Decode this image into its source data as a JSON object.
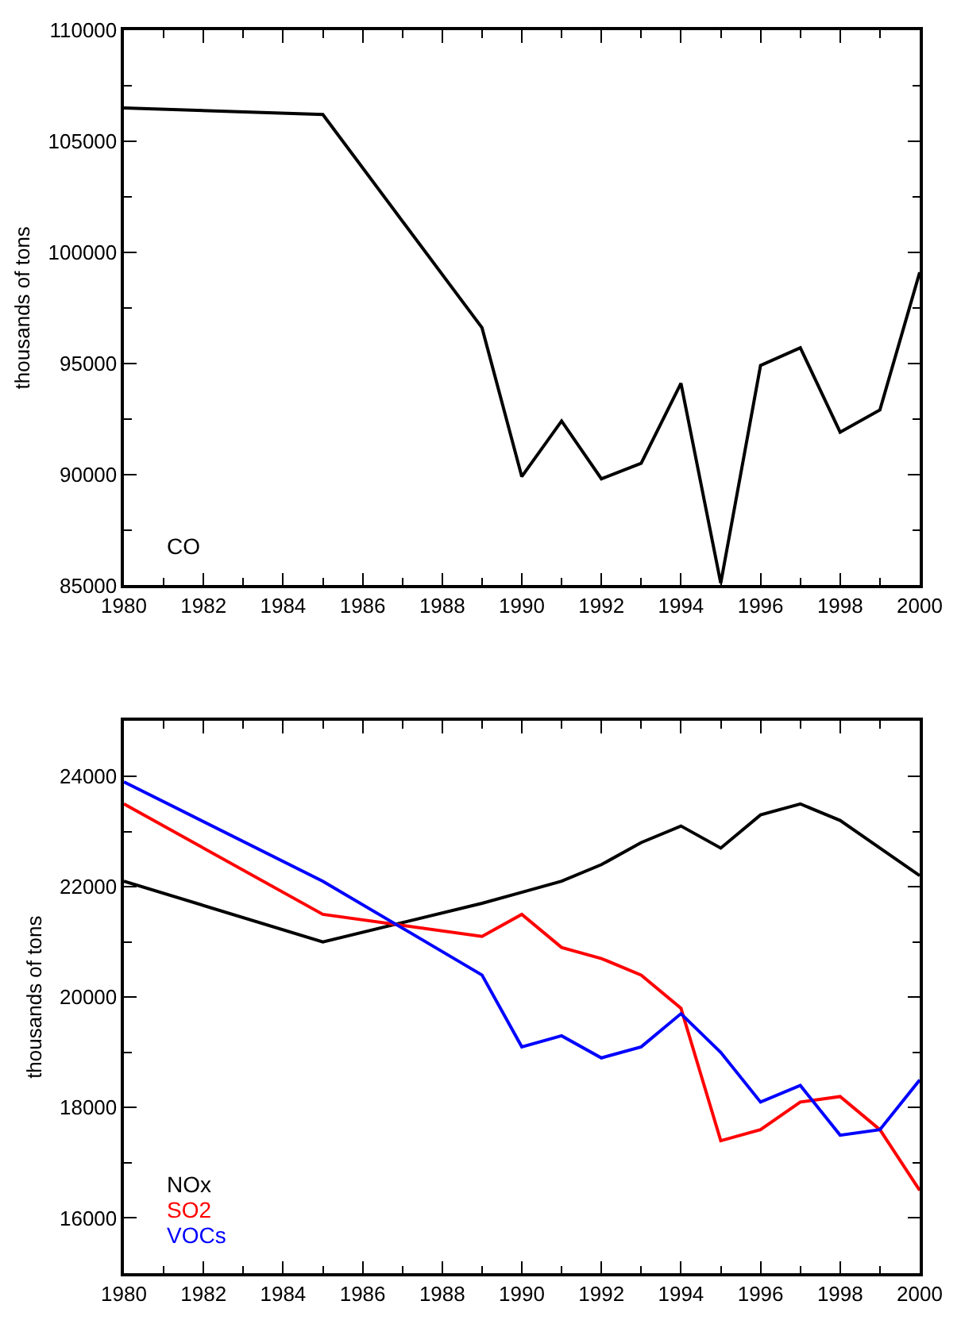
{
  "chart_data": [
    {
      "type": "line",
      "ylabel": "thousands of tons",
      "x": [
        1980,
        1985,
        1989,
        1990,
        1991,
        1992,
        1993,
        1994,
        1995,
        1996,
        1997,
        1998,
        1999,
        2000
      ],
      "series": [
        {
          "name": "CO",
          "color": "#000000",
          "values": [
            106500,
            106200,
            96600,
            89900,
            92400,
            89800,
            90500,
            94100,
            85100,
            94900,
            95700,
            91900,
            92900,
            99100
          ]
        }
      ],
      "xlim": [
        1980,
        2000
      ],
      "xticks": [
        1980,
        {
          "value": 1981,
          "label": null
        },
        1982,
        {
          "value": 1983,
          "label": null
        },
        1984,
        {
          "value": 1985,
          "label": null
        },
        1986,
        {
          "value": 1987,
          "label": null
        },
        1988,
        {
          "value": 1989,
          "label": null
        },
        1990,
        {
          "value": 1991,
          "label": null
        },
        1992,
        {
          "value": 1993,
          "label": null
        },
        1994,
        {
          "value": 1995,
          "label": null
        },
        1996,
        {
          "value": 1997,
          "label": null
        },
        1998,
        {
          "value": 1999,
          "label": null
        },
        2000
      ],
      "ylim": [
        85000,
        110000
      ],
      "yticks": [
        85000,
        {
          "value": 87500,
          "label": null
        },
        90000,
        {
          "value": 92500,
          "label": null
        },
        95000,
        {
          "value": 97500,
          "label": null
        },
        100000,
        {
          "value": 102500,
          "label": null
        },
        105000,
        {
          "value": 107500,
          "label": null
        },
        110000
      ],
      "line_style": "solid",
      "marker": "none"
    },
    {
      "type": "line",
      "ylabel": "thousands of tons",
      "x": [
        1980,
        1985,
        1989,
        1990,
        1991,
        1992,
        1993,
        1994,
        1995,
        1996,
        1997,
        1998,
        1999,
        2000
      ],
      "series": [
        {
          "name": "NOx",
          "color": "#000000",
          "values": [
            22100,
            21000,
            21700,
            21900,
            22100,
            22400,
            22800,
            23100,
            22700,
            23300,
            23500,
            23200,
            22700,
            22200
          ]
        },
        {
          "name": "SO2",
          "color": "#ff0000",
          "values": [
            23500,
            21500,
            21100,
            21500,
            20900,
            20700,
            20400,
            19800,
            17400,
            17600,
            18100,
            18200,
            17600,
            16500
          ]
        },
        {
          "name": "VOCs",
          "color": "#0000ff",
          "values": [
            23900,
            22100,
            20400,
            19100,
            19300,
            18900,
            19100,
            19700,
            19000,
            18100,
            18400,
            17500,
            17600,
            18500
          ]
        }
      ],
      "xlim": [
        1980,
        2000
      ],
      "xticks": [
        1980,
        {
          "value": 1981,
          "label": null
        },
        1982,
        {
          "value": 1983,
          "label": null
        },
        1984,
        {
          "value": 1985,
          "label": null
        },
        1986,
        {
          "value": 1987,
          "label": null
        },
        1988,
        {
          "value": 1989,
          "label": null
        },
        1990,
        {
          "value": 1991,
          "label": null
        },
        1992,
        {
          "value": 1993,
          "label": null
        },
        1994,
        {
          "value": 1995,
          "label": null
        },
        1996,
        {
          "value": 1997,
          "label": null
        },
        1998,
        {
          "value": 1999,
          "label": null
        },
        2000
      ],
      "ylim": [
        15000,
        25000
      ],
      "yticks": [
        {
          "value": 15000,
          "label": null
        },
        16000,
        {
          "value": 17000,
          "label": null
        },
        18000,
        {
          "value": 19000,
          "label": null
        },
        20000,
        {
          "value": 21000,
          "label": null
        },
        22000,
        {
          "value": 23000,
          "label": null
        },
        24000,
        {
          "value": 25000,
          "label": null
        }
      ],
      "line_style": "solid",
      "marker": "none"
    }
  ]
}
